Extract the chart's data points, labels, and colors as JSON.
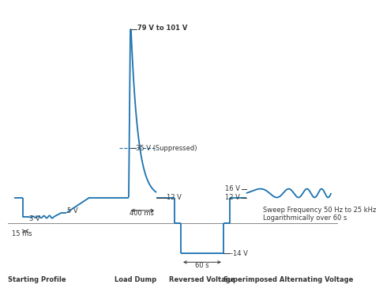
{
  "line_color": "#1a72b0",
  "text_color": "#333333",
  "bg_color": "#ffffff",
  "section_labels": [
    "Starting Profile",
    "Load Dump",
    "Reversed Voltage",
    "Superimposed Alternating Voltage"
  ],
  "annotations": {
    "79V_label": "79 V to 101 V",
    "35V_label": "35 V (Suppressed)",
    "12V_label": "12 V",
    "5V_label": "5 V",
    "3V_label": "3 V",
    "15ms_label": "15 ms",
    "400ms_label": "400 ms",
    "60s_label": "60 s",
    "neg14V_label": "-14 V",
    "16V_label": "16 V",
    "12V_ac_label": "12 V",
    "sweep_label": "Sweep Frequency 50 Hz to 25 kHz\nLogarithmically over 60 s"
  }
}
